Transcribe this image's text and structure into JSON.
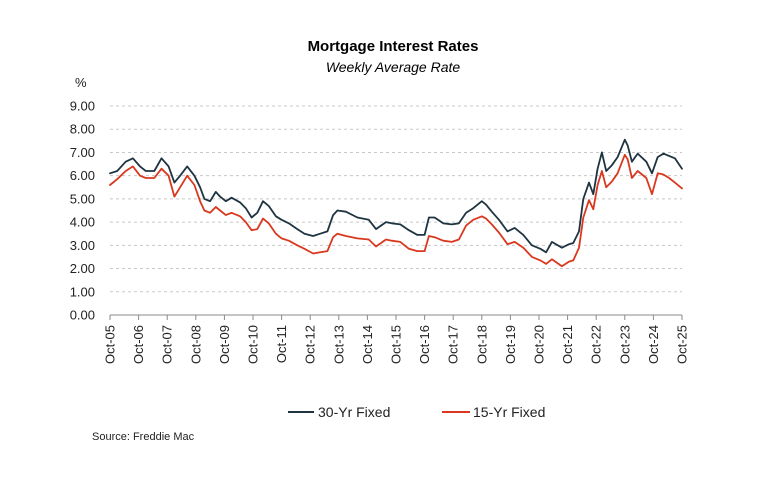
{
  "chart_data": {
    "type": "line",
    "title": "Mortgage Interest Rates",
    "subtitle": "Weekly Average Rate",
    "ylabel": "%",
    "xlabel": "",
    "ylim": [
      0,
      9
    ],
    "y_ticks": [
      "0.00",
      "1.00",
      "2.00",
      "3.00",
      "4.00",
      "5.00",
      "6.00",
      "7.00",
      "8.00",
      "9.00"
    ],
    "x_ticks": [
      "Oct-05",
      "Oct-06",
      "Oct-07",
      "Oct-08",
      "Oct-09",
      "Oct-10",
      "Oct-11",
      "Oct-12",
      "Oct-13",
      "Oct-14",
      "Oct-15",
      "Oct-16",
      "Oct-17",
      "Oct-18",
      "Oct-19",
      "Oct-20",
      "Oct-21",
      "Oct-22",
      "Oct-23",
      "Oct-24",
      "Oct-25"
    ],
    "x_range": [
      2005.75,
      2025.75
    ],
    "grid": "horizontal dashed",
    "legend_position": "bottom",
    "source": "Source: Freddie Mac",
    "series": [
      {
        "name": "30-Yr Fixed",
        "color": "#1e3440",
        "x": [
          2005.75,
          2006.0,
          2006.3,
          2006.55,
          2006.8,
          2007.0,
          2007.3,
          2007.55,
          2007.8,
          2008.0,
          2008.2,
          2008.45,
          2008.7,
          2008.9,
          2009.05,
          2009.25,
          2009.45,
          2009.6,
          2009.8,
          2010.0,
          2010.3,
          2010.5,
          2010.7,
          2010.9,
          2011.1,
          2011.3,
          2011.55,
          2011.75,
          2012.0,
          2012.3,
          2012.55,
          2012.85,
          2013.1,
          2013.35,
          2013.55,
          2013.7,
          2014.0,
          2014.4,
          2014.8,
          2015.05,
          2015.4,
          2015.6,
          2015.9,
          2016.2,
          2016.5,
          2016.75,
          2016.9,
          2017.1,
          2017.4,
          2017.7,
          2017.95,
          2018.2,
          2018.45,
          2018.75,
          2018.9,
          2019.1,
          2019.35,
          2019.65,
          2019.9,
          2020.2,
          2020.5,
          2020.8,
          2021.0,
          2021.2,
          2021.55,
          2021.8,
          2021.95,
          2022.15,
          2022.3,
          2022.5,
          2022.65,
          2022.8,
          2022.95,
          2023.1,
          2023.3,
          2023.5,
          2023.75,
          2023.85,
          2024.0,
          2024.2,
          2024.5,
          2024.7,
          2024.9,
          2025.1,
          2025.3,
          2025.5,
          2025.75
        ],
        "values": [
          6.1,
          6.2,
          6.6,
          6.75,
          6.4,
          6.2,
          6.2,
          6.75,
          6.4,
          5.7,
          6.0,
          6.4,
          6.0,
          5.5,
          5.0,
          4.9,
          5.3,
          5.1,
          4.9,
          5.05,
          4.85,
          4.6,
          4.2,
          4.4,
          4.9,
          4.7,
          4.25,
          4.1,
          3.95,
          3.7,
          3.5,
          3.4,
          3.5,
          3.6,
          4.3,
          4.5,
          4.45,
          4.2,
          4.1,
          3.7,
          4.0,
          3.95,
          3.9,
          3.65,
          3.45,
          3.45,
          4.2,
          4.2,
          3.95,
          3.9,
          3.95,
          4.4,
          4.6,
          4.9,
          4.75,
          4.45,
          4.1,
          3.6,
          3.75,
          3.45,
          3.0,
          2.85,
          2.7,
          3.15,
          2.9,
          3.05,
          3.1,
          3.6,
          5.0,
          5.7,
          5.2,
          6.3,
          7.0,
          6.2,
          6.45,
          6.8,
          7.55,
          7.3,
          6.6,
          6.95,
          6.6,
          6.1,
          6.8,
          6.95,
          6.85,
          6.75,
          6.3
        ]
      },
      {
        "name": "15-Yr Fixed",
        "color": "#d9381e",
        "x": [
          2005.75,
          2006.0,
          2006.3,
          2006.55,
          2006.8,
          2007.0,
          2007.3,
          2007.55,
          2007.8,
          2008.0,
          2008.2,
          2008.45,
          2008.7,
          2008.9,
          2009.05,
          2009.25,
          2009.45,
          2009.6,
          2009.8,
          2010.0,
          2010.3,
          2010.5,
          2010.7,
          2010.9,
          2011.1,
          2011.3,
          2011.55,
          2011.75,
          2012.0,
          2012.3,
          2012.55,
          2012.85,
          2013.1,
          2013.35,
          2013.55,
          2013.7,
          2014.0,
          2014.4,
          2014.8,
          2015.05,
          2015.4,
          2015.6,
          2015.9,
          2016.2,
          2016.5,
          2016.75,
          2016.9,
          2017.1,
          2017.4,
          2017.7,
          2017.95,
          2018.2,
          2018.45,
          2018.75,
          2018.9,
          2019.1,
          2019.35,
          2019.65,
          2019.9,
          2020.2,
          2020.5,
          2020.8,
          2021.0,
          2021.2,
          2021.55,
          2021.8,
          2021.95,
          2022.15,
          2022.3,
          2022.5,
          2022.65,
          2022.8,
          2022.95,
          2023.1,
          2023.3,
          2023.5,
          2023.75,
          2023.85,
          2024.0,
          2024.2,
          2024.5,
          2024.7,
          2024.9,
          2025.1,
          2025.3,
          2025.5,
          2025.75
        ],
        "values": [
          5.6,
          5.85,
          6.2,
          6.4,
          6.0,
          5.9,
          5.9,
          6.3,
          6.0,
          5.1,
          5.5,
          6.0,
          5.6,
          4.9,
          4.5,
          4.4,
          4.65,
          4.5,
          4.3,
          4.4,
          4.25,
          4.0,
          3.65,
          3.7,
          4.15,
          3.95,
          3.5,
          3.3,
          3.2,
          3.0,
          2.85,
          2.65,
          2.7,
          2.75,
          3.35,
          3.5,
          3.4,
          3.3,
          3.25,
          2.95,
          3.25,
          3.2,
          3.15,
          2.85,
          2.75,
          2.75,
          3.4,
          3.35,
          3.2,
          3.15,
          3.25,
          3.85,
          4.1,
          4.25,
          4.15,
          3.9,
          3.55,
          3.05,
          3.15,
          2.9,
          2.5,
          2.35,
          2.2,
          2.4,
          2.1,
          2.3,
          2.35,
          2.9,
          4.2,
          4.95,
          4.55,
          5.6,
          6.2,
          5.5,
          5.75,
          6.1,
          6.9,
          6.7,
          5.9,
          6.2,
          5.9,
          5.2,
          6.1,
          6.05,
          5.9,
          5.7,
          5.45
        ]
      }
    ]
  }
}
